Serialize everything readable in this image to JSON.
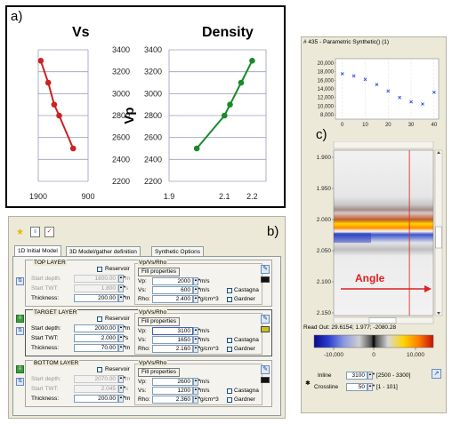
{
  "panel_a": {
    "label": "a)",
    "charts": [
      {
        "type": "line",
        "title": "Vs",
        "x_ticks": [
          "1900",
          "900"
        ],
        "xlim": [
          1900,
          900
        ],
        "y_ticks": [
          "3400",
          "3200",
          "3000",
          "2800",
          "2600",
          "2400",
          "2200"
        ],
        "ylim": [
          2200,
          3400
        ],
        "ylabel": "",
        "color": "#cc2222",
        "x": [
          1850,
          1700,
          1580,
          1480,
          1200
        ],
        "y": [
          3300,
          3100,
          2900,
          2800,
          2500
        ]
      },
      {
        "type": "line",
        "title": "Density",
        "x_ticks": [
          "1.9",
          "2.1",
          "2.2"
        ],
        "xlim": [
          1.9,
          2.25
        ],
        "y_ticks": [
          "3400",
          "3200",
          "3000",
          "2800",
          "2600",
          "2400",
          "2200"
        ],
        "ylim": [
          2200,
          3400
        ],
        "ylabel": "Vp",
        "color": "#1a8a2a",
        "x": [
          2.0,
          2.1,
          2.12,
          2.16,
          2.2
        ],
        "y": [
          2500,
          2800,
          2900,
          3100,
          3300
        ]
      }
    ]
  },
  "panel_b": {
    "label": "b)",
    "tabs": [
      "1D Initial Model",
      "3D Model/gather definition",
      "Synthetic Options"
    ],
    "layers": [
      {
        "title": "TOP LAYER",
        "reservoir_label": "Reservoir",
        "fields": [
          {
            "label": "Start depth:",
            "value": "1800.00",
            "unit": "m"
          },
          {
            "label": "Start TWT:",
            "value": "1.800",
            "unit": "s"
          },
          {
            "label": "Thickness:",
            "value": "200.00",
            "unit": "m"
          }
        ],
        "props_title": "Vp/Vs/Rho",
        "fill_label": "Fill properties",
        "props": [
          {
            "label": "Vp:",
            "value": "2000",
            "unit": "m/s"
          },
          {
            "label": "Vs:",
            "value": "600",
            "unit": "m/s"
          },
          {
            "label": "Rho:",
            "value": "2.400",
            "unit": "g/cm^3"
          }
        ],
        "checks": [
          "Castagna",
          "Gardner"
        ],
        "swatch": "#111111"
      },
      {
        "title": "TARGET LAYER",
        "reservoir_label": "Reservoir",
        "fields": [
          {
            "label": "Start depth:",
            "value": "2000.00",
            "unit": "m"
          },
          {
            "label": "Start TWT:",
            "value": "2.000",
            "unit": "s"
          },
          {
            "label": "Thickness:",
            "value": "70.00",
            "unit": "m"
          }
        ],
        "props_title": "Vp/Vs/Rho",
        "fill_label": "Fill properties",
        "props": [
          {
            "label": "Vp:",
            "value": "3100",
            "unit": "m/s"
          },
          {
            "label": "Vs:",
            "value": "1650",
            "unit": "m/s"
          },
          {
            "label": "Rho:",
            "value": "2.160",
            "unit": "g/cm^3"
          }
        ],
        "checks": [
          "Castagna",
          "Gardner"
        ],
        "swatch": "#c9c21e"
      },
      {
        "title": "BOTTOM LAYER",
        "reservoir_label": "Reservoir",
        "fields": [
          {
            "label": "Start depth:",
            "value": "2070.00",
            "unit": "m"
          },
          {
            "label": "Start TWT:",
            "value": "2.045",
            "unit": "s"
          },
          {
            "label": "Thickness:",
            "value": "200.00",
            "unit": "m"
          }
        ],
        "props_title": "Vp/Vs/Rho",
        "fill_label": "Fill properties",
        "props": [
          {
            "label": "Vp:",
            "value": "2600",
            "unit": "m/s"
          },
          {
            "label": "Vs:",
            "value": "1200",
            "unit": "m/s"
          },
          {
            "label": "Rho:",
            "value": "2.360",
            "unit": "g/cm^3"
          }
        ],
        "checks": [
          "Castagna",
          "Gardner"
        ],
        "swatch": "#111111"
      }
    ]
  },
  "panel_c": {
    "label": "c)",
    "window_title": "# 435 - Parametric Synthetic() (1)",
    "scatter": {
      "type": "scatter",
      "y_ticks": [
        "20,000",
        "18,000",
        "16,000",
        "14,000",
        "12,000",
        "10,000",
        "8,000"
      ],
      "ylim": [
        7000,
        21000
      ],
      "x_ticks": [
        "0",
        "10",
        "20",
        "30",
        "40"
      ],
      "xlim": [
        -3,
        42
      ],
      "color": "#2a4fd6",
      "x": [
        0,
        5,
        10,
        15,
        20,
        25,
        30,
        35,
        40
      ],
      "y": [
        17500,
        17000,
        16200,
        15000,
        13500,
        12000,
        11000,
        10500,
        13200
      ]
    },
    "time_ticks": [
      "1.900",
      "1.950",
      "2.000",
      "2.050",
      "2.100",
      "2.150"
    ],
    "angle_label": "Angle",
    "readout": "Read Out: 29.6154; 1.977; -2080.28",
    "colorbar_ticks": [
      "-10,000",
      "0",
      "10,000"
    ],
    "inline_label": "Inline",
    "inline_value": "3100",
    "inline_range": "[2500 - 3300]",
    "crossline_label": "Crossline",
    "crossline_value": "50",
    "crossline_range": "[1 - 101]"
  }
}
